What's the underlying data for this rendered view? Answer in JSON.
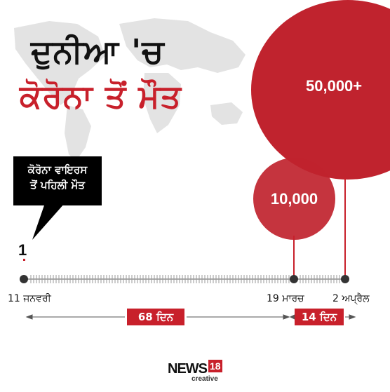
{
  "title": {
    "line1": "ਦੁਨੀਆ 'ਚ",
    "line2": "ਕੋਰੋਨਾ ਤੋਂ ਮੌਤ"
  },
  "circles": {
    "big_label": "50,000+",
    "small_label": "10,000"
  },
  "callout": {
    "line1": "ਕੋਰੋਨਾ ਵਾਇਰਸ",
    "line2": "ਤੋਂ ਪਹਿਲੀ ਮੌਤ"
  },
  "first_count": "1",
  "timeline": {
    "start_label": "11 ਜਨਵਰੀ",
    "mid_label": "19 ਮਾਰਚ",
    "end_label": "2 ਅਪ੍ਰੈਲ",
    "gap1": "68 ਦਿਨ",
    "gap2": "14 ਦਿਨ"
  },
  "logo": {
    "brand": "NEWS",
    "number": "18",
    "sub": "creative"
  },
  "colors": {
    "accent": "#c8202b",
    "circle": "#c0232e",
    "text": "#111111",
    "map": "#e3e3e3"
  }
}
